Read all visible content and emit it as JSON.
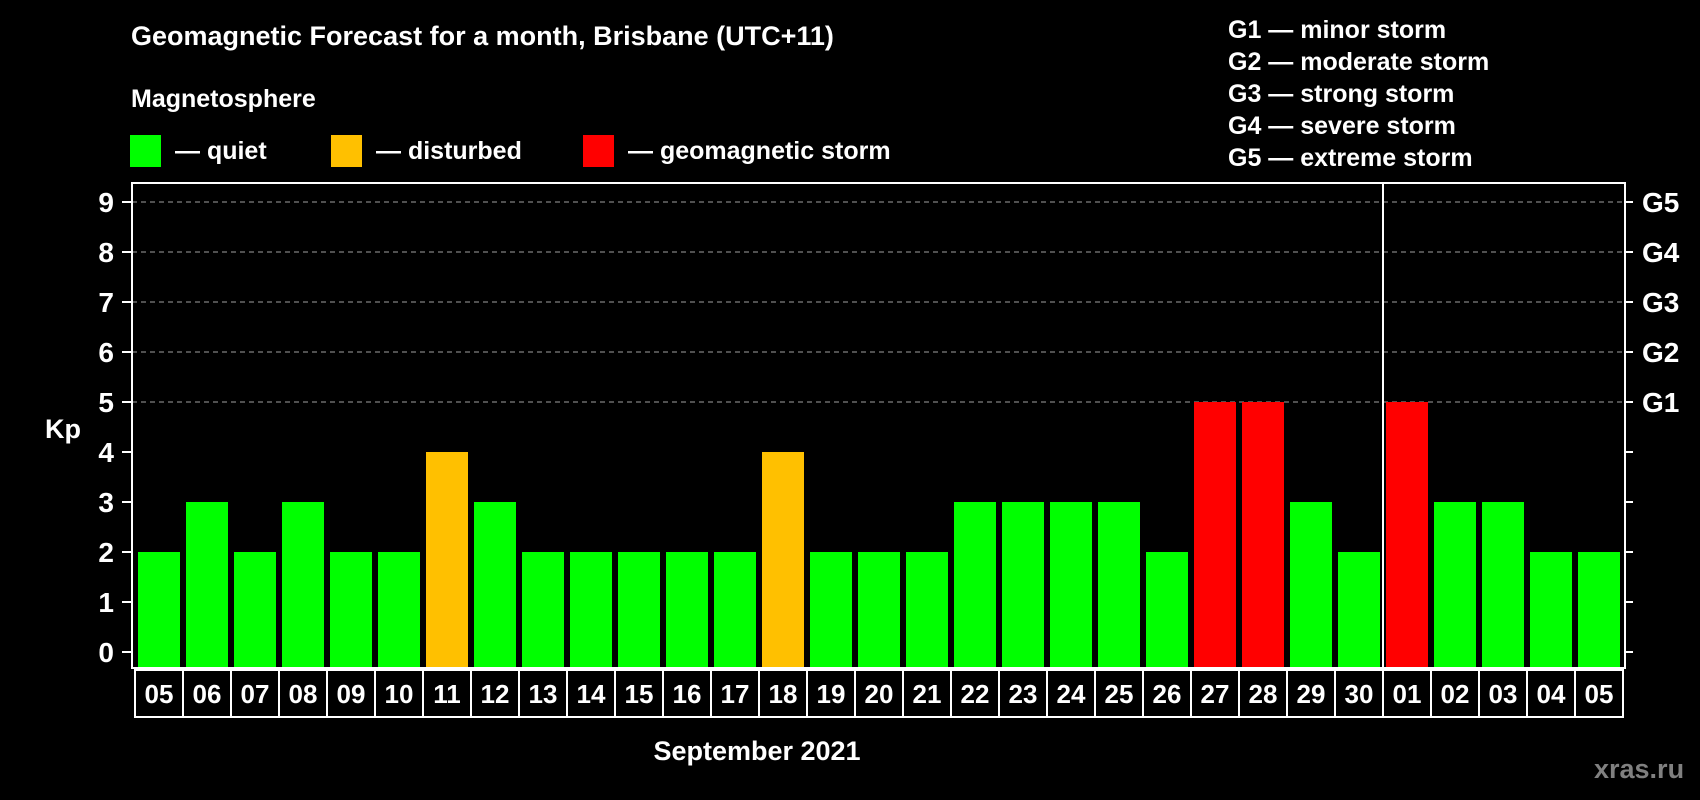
{
  "title": "Geomagnetic Forecast for a month, Brisbane (UTC+11)",
  "legend": {
    "title": "Magnetosphere",
    "items": [
      {
        "key": "quiet",
        "label": "— quiet",
        "color": "#00ff00"
      },
      {
        "key": "disturbed",
        "label": "— disturbed",
        "color": "#ffc000"
      },
      {
        "key": "storm",
        "label": "— geomagnetic storm",
        "color": "#ff0000"
      }
    ]
  },
  "storm_scale": [
    "G1 — minor storm",
    "G2 — moderate storm",
    "G3 — strong storm",
    "G4 — severe storm",
    "G5 — extreme storm"
  ],
  "watermark": "xras.ru",
  "colors": {
    "background": "#000000",
    "axis": "#ffffff",
    "grid": "#a0a0a0",
    "quiet": "#00ff00",
    "disturbed": "#ffc000",
    "storm": "#ff0000",
    "watermark": "#808080"
  },
  "chart_data": {
    "type": "bar",
    "title": "Geomagnetic Forecast for a month, Brisbane (UTC+11)",
    "xlabel": "September 2021",
    "ylabel": "Kp",
    "ylim": [
      0,
      9
    ],
    "yticks": [
      0,
      1,
      2,
      3,
      4,
      5,
      6,
      7,
      8,
      9
    ],
    "right_axis_labels": [
      {
        "kp": 5,
        "label": "G1"
      },
      {
        "kp": 6,
        "label": "G2"
      },
      {
        "kp": 7,
        "label": "G3"
      },
      {
        "kp": 8,
        "label": "G4"
      },
      {
        "kp": 9,
        "label": "G5"
      }
    ],
    "grid": {
      "dashed_at": [
        5,
        6,
        7,
        8,
        9
      ]
    },
    "month_divider_before": "01",
    "categories": [
      "05",
      "06",
      "07",
      "08",
      "09",
      "10",
      "11",
      "12",
      "13",
      "14",
      "15",
      "16",
      "17",
      "18",
      "19",
      "20",
      "21",
      "22",
      "23",
      "24",
      "25",
      "26",
      "27",
      "28",
      "29",
      "30",
      "01",
      "02",
      "03",
      "04",
      "05"
    ],
    "values": [
      2,
      3,
      2,
      3,
      2,
      2,
      4,
      3,
      2,
      2,
      2,
      2,
      2,
      4,
      2,
      2,
      2,
      3,
      3,
      3,
      3,
      2,
      5,
      5,
      3,
      2,
      5,
      3,
      3,
      2,
      2
    ],
    "status": [
      "quiet",
      "quiet",
      "quiet",
      "quiet",
      "quiet",
      "quiet",
      "disturbed",
      "quiet",
      "quiet",
      "quiet",
      "quiet",
      "quiet",
      "quiet",
      "disturbed",
      "quiet",
      "quiet",
      "quiet",
      "quiet",
      "quiet",
      "quiet",
      "quiet",
      "quiet",
      "storm",
      "storm",
      "quiet",
      "quiet",
      "storm",
      "quiet",
      "quiet",
      "quiet",
      "quiet"
    ],
    "legend": [
      "quiet",
      "disturbed",
      "geomagnetic storm"
    ],
    "legend_position": "top"
  }
}
